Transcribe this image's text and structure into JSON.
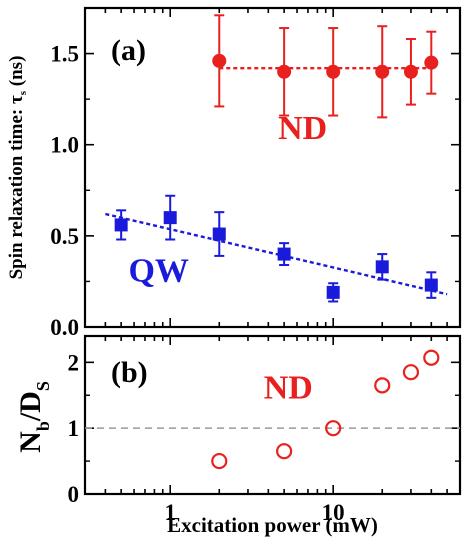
{
  "chart_data": [
    {
      "panel": "(a)",
      "type": "scatter",
      "ylabel_main": "Spin relaxation time: ",
      "ylabel_symbol": "τ",
      "ylabel_sub": "s",
      "ylabel_unit": " (ns)",
      "x_scale": "log",
      "xlim": [
        0.3,
        60
      ],
      "ylim": [
        0,
        1.75
      ],
      "yticks": [
        0.0,
        0.5,
        1.0,
        1.5
      ],
      "ytick_labels": [
        "0.0",
        "0.5",
        "1.0",
        "1.5"
      ],
      "series": [
        {
          "name": "ND",
          "color": "#e8201e",
          "marker": "circle",
          "x": [
            2,
            5,
            10,
            20,
            30,
            40
          ],
          "y": [
            1.46,
            1.4,
            1.4,
            1.4,
            1.4,
            1.45
          ],
          "err": [
            0.25,
            0.24,
            0.24,
            0.25,
            0.18,
            0.17
          ],
          "fit": {
            "x": [
              2,
              40
            ],
            "y": [
              1.42,
              1.42
            ]
          }
        },
        {
          "name": "QW",
          "color": "#1a1adb",
          "marker": "square",
          "x": [
            0.5,
            1,
            2,
            5,
            10,
            20,
            40
          ],
          "y": [
            0.56,
            0.6,
            0.51,
            0.4,
            0.19,
            0.33,
            0.23
          ],
          "err": [
            0.08,
            0.12,
            0.12,
            0.06,
            0.05,
            0.07,
            0.07
          ],
          "fit": {
            "x": [
              0.4,
              50
            ],
            "y": [
              0.62,
              0.18
            ]
          }
        }
      ],
      "annotations": [
        {
          "text": "ND",
          "x": 6.5,
          "y": 1.03,
          "color": "#e8201e"
        },
        {
          "text": "QW",
          "x": 0.85,
          "y": 0.25,
          "color": "#1a1adb"
        }
      ]
    },
    {
      "panel": "(b)",
      "type": "scatter",
      "ylabel": "N",
      "ylabel_sub1": "b",
      "ylabel_mid": "/D",
      "ylabel_sub2": "S",
      "x_scale": "log",
      "xlim": [
        0.3,
        60
      ],
      "ylim": [
        0,
        2.4
      ],
      "yticks": [
        0,
        1,
        2
      ],
      "ytick_labels": [
        "0",
        "1",
        "2"
      ],
      "xticks": [
        1,
        10
      ],
      "xtick_labels": [
        "1",
        "10"
      ],
      "xlabel": "Excitation power (mW)",
      "reference_line": {
        "y": 1,
        "style": "dashed",
        "color": "#9a9a9a"
      },
      "series": [
        {
          "name": "ND",
          "color": "#e8201e",
          "marker": "open-circle",
          "x": [
            2,
            5,
            10,
            20,
            30,
            40
          ],
          "y": [
            0.5,
            0.65,
            1.0,
            1.65,
            1.85,
            2.07
          ]
        }
      ],
      "annotations": [
        {
          "text": "ND",
          "x": 5.3,
          "y": 1.45,
          "color": "#e8201e"
        }
      ]
    }
  ]
}
